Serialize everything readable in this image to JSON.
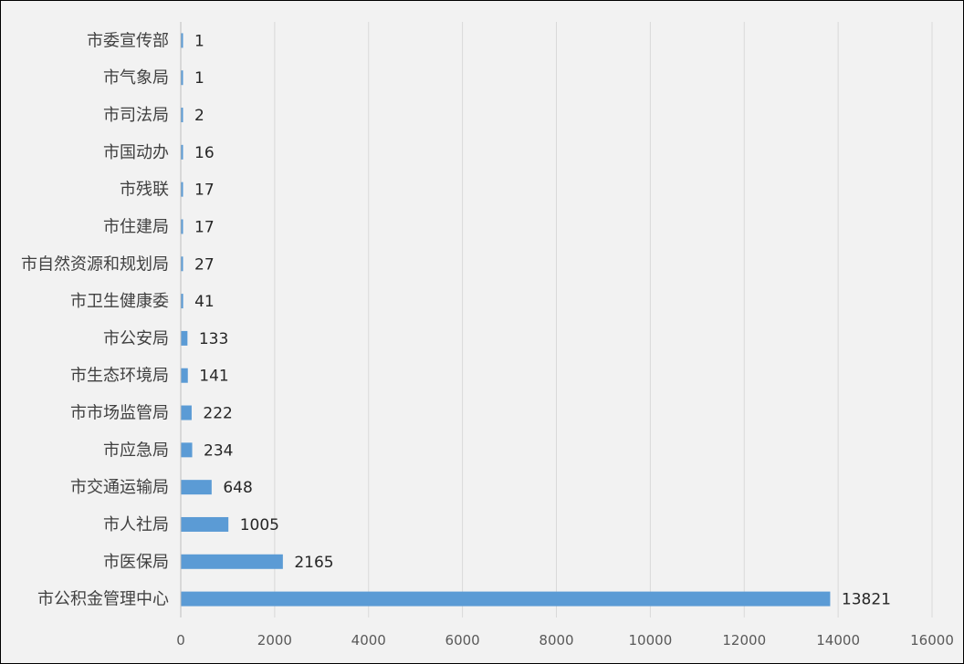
{
  "chart_data": {
    "type": "bar",
    "orientation": "horizontal",
    "categories": [
      "市委宣传部",
      "市气象局",
      "市司法局",
      "市国动办",
      "市残联",
      "市住建局",
      "市自然资源和规划局",
      "市卫生健康委",
      "市公安局",
      "市生态环境局",
      "市市场监管局",
      "市应急局",
      "市交通运输局",
      "市人社局",
      "市医保局",
      "市公积金管理中心"
    ],
    "values": [
      1,
      1,
      2,
      16,
      17,
      17,
      27,
      41,
      133,
      141,
      222,
      234,
      648,
      1005,
      2165,
      13821
    ],
    "value_labels": [
      "1",
      "1",
      "2",
      "16",
      "17",
      "17",
      "27",
      "41",
      "133",
      "141",
      "222",
      "234",
      "648",
      "1005",
      "2165",
      "13821"
    ],
    "xticks": [
      "0",
      "2000",
      "4000",
      "6000",
      "8000",
      "10000",
      "12000",
      "14000",
      "16000"
    ],
    "xlim": [
      0,
      16000
    ],
    "grid": true,
    "legend": "none",
    "bar_color": "#5b9bd5",
    "background_color": "#f2f2f2",
    "title": "",
    "xlabel": "",
    "ylabel": ""
  }
}
